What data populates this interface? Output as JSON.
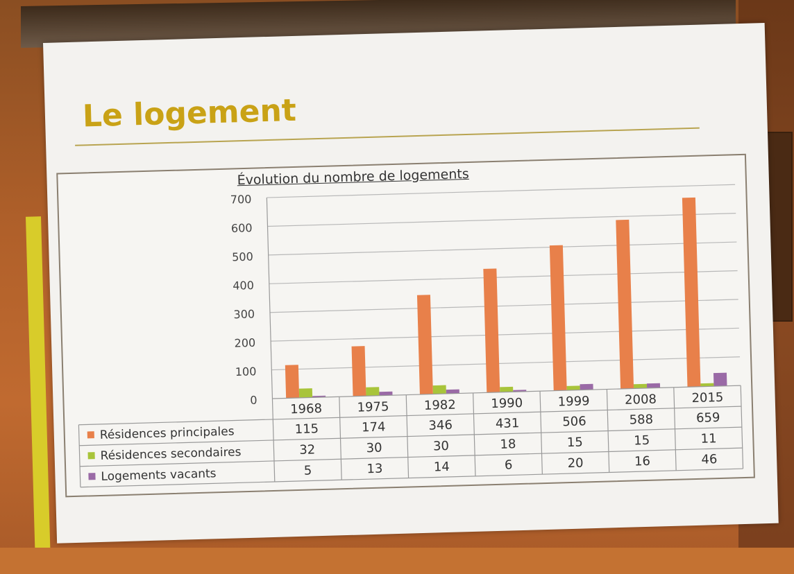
{
  "slide": {
    "title": "Le logement"
  },
  "chart_data": {
    "type": "bar",
    "title": "Évolution du nombre de logements",
    "categories": [
      "1968",
      "1975",
      "1982",
      "1990",
      "1999",
      "2008",
      "2015"
    ],
    "series": [
      {
        "name": "Résidences principales",
        "values": [
          115,
          174,
          346,
          431,
          506,
          588,
          659
        ],
        "color": "#e8804a"
      },
      {
        "name": "Résidences secondaires",
        "values": [
          32,
          30,
          30,
          18,
          15,
          15,
          11
        ],
        "color": "#a8c43a"
      },
      {
        "name": "Logements vacants",
        "values": [
          5,
          13,
          14,
          6,
          20,
          16,
          46
        ],
        "color": "#9a6aa6"
      }
    ],
    "yticks": [
      "0",
      "100",
      "200",
      "300",
      "400",
      "500",
      "600",
      "700"
    ],
    "ylim": [
      0,
      700
    ],
    "grid": true,
    "legend": "data table below chart"
  }
}
